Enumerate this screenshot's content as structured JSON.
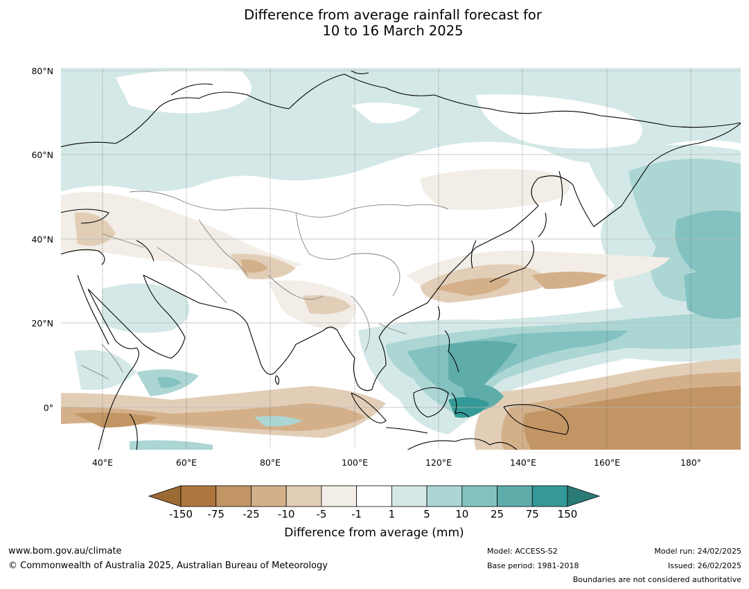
{
  "title_line1": "Difference from average rainfall forecast for",
  "title_line2": "10 to 16 March 2025",
  "lat_labels": [
    "80°N",
    "60°N",
    "40°N",
    "20°N",
    "0°"
  ],
  "lon_labels": [
    "40°E",
    "60°E",
    "80°E",
    "100°E",
    "120°E",
    "140°E",
    "160°E",
    "180°"
  ],
  "colorbar": {
    "ticks": [
      "-150",
      "-75",
      "-25",
      "-10",
      "-5",
      "-1",
      "1",
      "5",
      "10",
      "25",
      "75",
      "150"
    ],
    "colors": [
      "#9c6a33",
      "#ae773f",
      "#c29565",
      "#d4b08a",
      "#e2ceb7",
      "#f2ede6",
      "#ffffff",
      "#d4e9e7",
      "#abd6d4",
      "#83c2c0",
      "#5eadab",
      "#359a97",
      "#2a7a78"
    ],
    "label": "Difference from average (mm)"
  },
  "footer": {
    "website": "www.bom.gov.au/climate",
    "copyright": "© Commonwealth of Australia 2025, Australian Bureau of Meteorology",
    "model": "Model: ACCESS-S2",
    "base_period": "Base period: 1981-2018",
    "model_run": "Model run: 24/02/2025",
    "issued": "Issued: 26/02/2025",
    "disclaimer": "Boundaries are not considered authoritative"
  }
}
